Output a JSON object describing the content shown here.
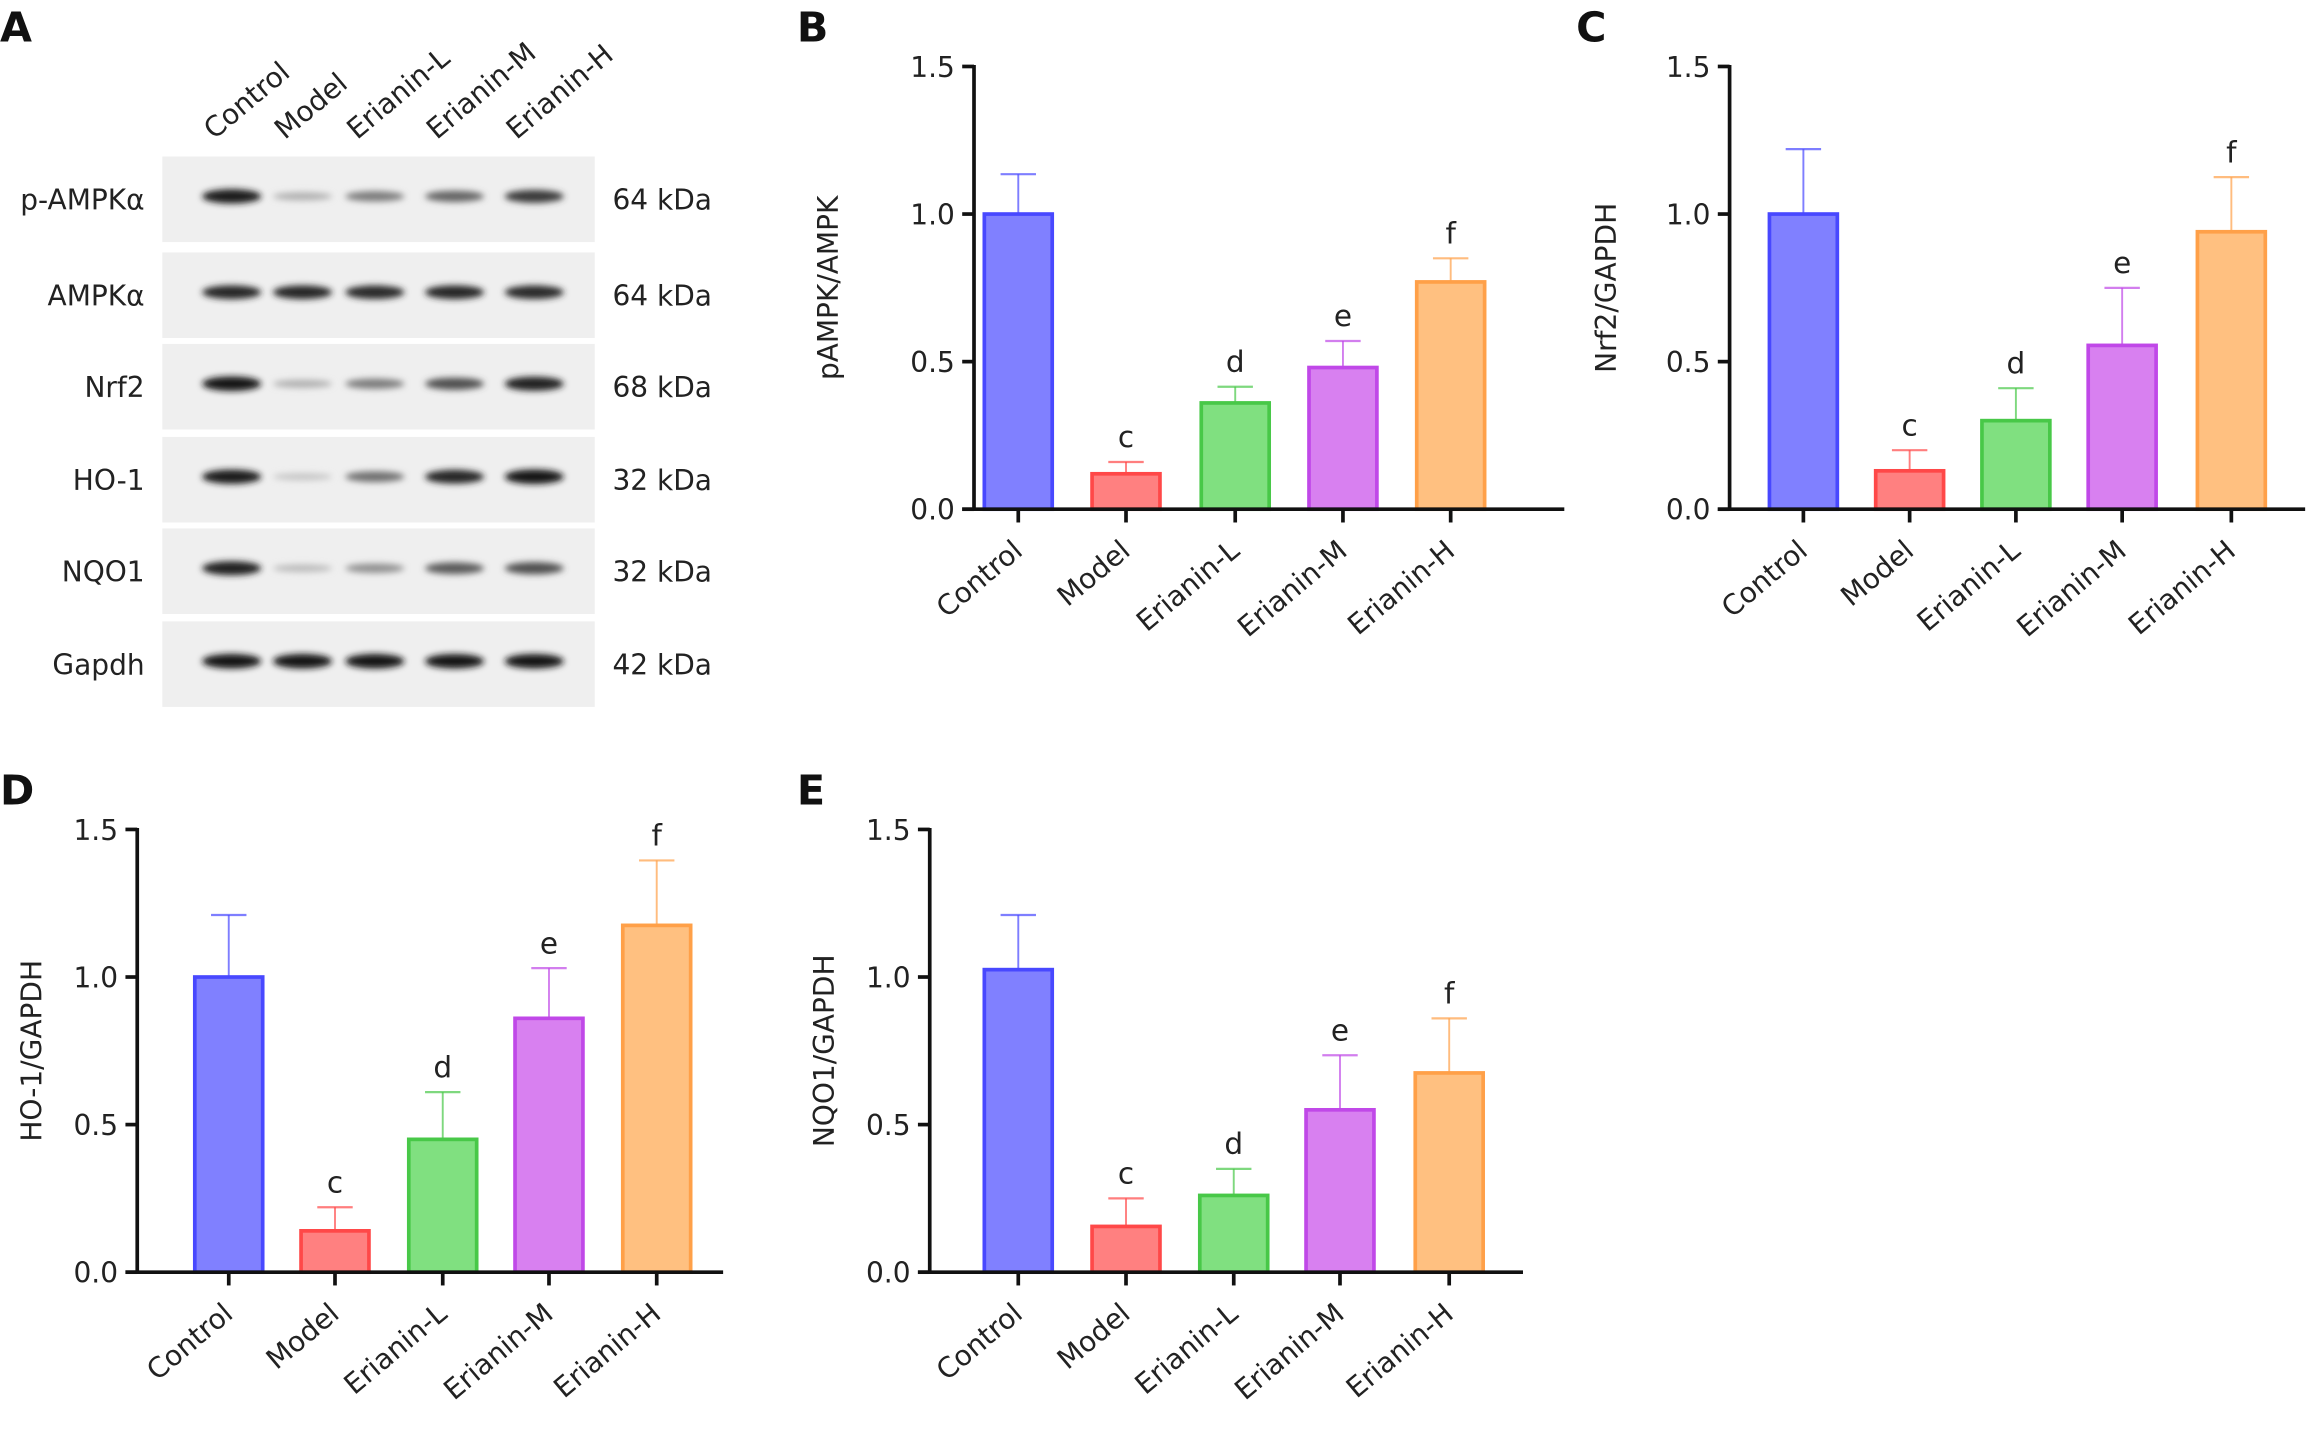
{
  "chart_data": [
    {
      "panel": "A",
      "type": "western-blot",
      "lanes": [
        "Control",
        "Model",
        "Erianin-L",
        "Erianin-M",
        "Erianin-H"
      ],
      "rows": [
        {
          "protein": "p-AMPKα",
          "size": "64 kDa",
          "intensity": [
            0.95,
            0.25,
            0.5,
            0.6,
            0.8
          ]
        },
        {
          "protein": "AMPKα",
          "size": "64 kDa",
          "intensity": [
            0.9,
            0.9,
            0.88,
            0.9,
            0.88
          ]
        },
        {
          "protein": "Nrf2",
          "size": "68 kDa",
          "intensity": [
            0.98,
            0.25,
            0.5,
            0.7,
            0.92
          ]
        },
        {
          "protein": "HO-1",
          "size": "32 kDa",
          "intensity": [
            0.95,
            0.15,
            0.55,
            0.9,
            0.98
          ]
        },
        {
          "protein": "NQO1",
          "size": "32 kDa",
          "intensity": [
            0.92,
            0.2,
            0.4,
            0.65,
            0.7
          ]
        },
        {
          "protein": "Gapdh",
          "size": "42 kDa",
          "intensity": [
            0.98,
            0.98,
            0.98,
            0.97,
            0.97
          ]
        }
      ]
    },
    {
      "panel": "B",
      "type": "bar",
      "ylabel": "pAMPK/AMPK",
      "ylim": [
        0,
        1.5
      ],
      "yticks": [
        "0.0",
        "0.5",
        "1.0",
        "1.5"
      ],
      "categories": [
        "Control",
        "Model",
        "Erianin-L",
        "Erianin-M",
        "Erianin-H"
      ],
      "values": [
        1.0,
        0.12,
        0.36,
        0.48,
        0.77
      ],
      "error_upper": [
        1.135,
        0.16,
        0.415,
        0.57,
        0.85
      ],
      "annotations": [
        "",
        "c",
        "d",
        "e",
        "f"
      ]
    },
    {
      "panel": "C",
      "type": "bar",
      "ylabel": "Nrf2/GAPDH",
      "ylim": [
        0,
        1.5
      ],
      "yticks": [
        "0.0",
        "0.5",
        "1.0",
        "1.5"
      ],
      "categories": [
        "Control",
        "Model",
        "Erianin-L",
        "Erianin-M",
        "Erianin-H"
      ],
      "values": [
        1.0,
        0.13,
        0.3,
        0.555,
        0.94
      ],
      "error_upper": [
        1.22,
        0.2,
        0.41,
        0.75,
        1.125
      ],
      "annotations": [
        "",
        "c",
        "d",
        "e",
        "f"
      ]
    },
    {
      "panel": "D",
      "type": "bar",
      "ylabel": "HO-1/GAPDH",
      "ylim": [
        0,
        1.5
      ],
      "yticks": [
        "0.0",
        "0.5",
        "1.0",
        "1.5"
      ],
      "categories": [
        "Control",
        "Model",
        "Erianin-L",
        "Erianin-M",
        "Erianin-H"
      ],
      "values": [
        1.0,
        0.14,
        0.45,
        0.86,
        1.175
      ],
      "error_upper": [
        1.21,
        0.22,
        0.61,
        1.03,
        1.395
      ],
      "annotations": [
        "",
        "c",
        "d",
        "e",
        "f"
      ]
    },
    {
      "panel": "E",
      "type": "bar",
      "ylabel": "NQO1/GAPDH",
      "ylim": [
        0,
        1.5
      ],
      "yticks": [
        "0.0",
        "0.5",
        "1.0",
        "1.5"
      ],
      "categories": [
        "Control",
        "Model",
        "Erianin-L",
        "Erianin-M",
        "Erianin-H"
      ],
      "values": [
        1.025,
        0.155,
        0.26,
        0.55,
        0.675
      ],
      "error_upper": [
        1.21,
        0.25,
        0.35,
        0.735,
        0.86
      ],
      "annotations": [
        "",
        "c",
        "d",
        "e",
        "f"
      ]
    }
  ],
  "colors": {
    "fill": [
      "#8080ff",
      "#ff8080",
      "#80e080",
      "#d880f0",
      "#ffc080"
    ],
    "stroke": [
      "#4848ff",
      "#ff4848",
      "#48c848",
      "#c048e8",
      "#ffa048"
    ]
  }
}
